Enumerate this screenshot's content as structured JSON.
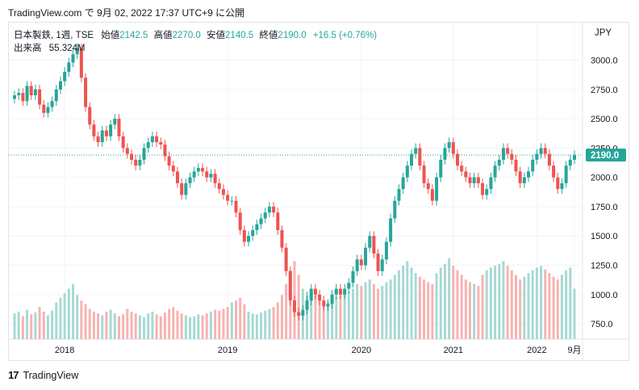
{
  "header": {
    "text": "TradingView.com で 9月 02, 2022 17:37 UTC+9 に公開"
  },
  "legend": {
    "symbol": "日本製鉄, 1週, TSE",
    "open_label": "始値",
    "open_value": "2142.5",
    "high_label": "高値",
    "high_value": "2270.0",
    "low_label": "安値",
    "low_value": "2140.5",
    "close_label": "終値",
    "close_value": "2190.0",
    "change": "+16.5 (+0.76%)",
    "volume_label": "出来高",
    "volume_value": "55.324M"
  },
  "currency": "JPY",
  "footer": {
    "brand": "TradingView",
    "logo": "tv-logo-icon"
  },
  "colors": {
    "up": "#26a69a",
    "down": "#ef5350",
    "vol_up": "#a7d9d4",
    "vol_down": "#f7b3b1",
    "last_price_bg": "#26a69a"
  },
  "chart_data": {
    "type": "candlestick",
    "title": "日本製鉄, 1週, TSE",
    "ylabel": "",
    "xlabel": "",
    "ylim": [
      620,
      3320
    ],
    "y_ticks": [
      "750.0",
      "1000.0",
      "1250.0",
      "1500.0",
      "1750.0",
      "2000.0",
      "2250.0",
      "2500.0",
      "2750.0",
      "3000.0"
    ],
    "x_ticks": [
      "2018",
      "2019",
      "2020",
      "2021",
      "2022",
      "9月"
    ],
    "last_price": "2190.0",
    "last_price_value": 2190,
    "series_close": [
      2700,
      2720,
      2650,
      2780,
      2700,
      2750,
      2620,
      2550,
      2600,
      2650,
      2750,
      2820,
      2900,
      2980,
      3050,
      3100,
      2850,
      2600,
      2450,
      2350,
      2300,
      2400,
      2350,
      2450,
      2500,
      2350,
      2250,
      2200,
      2150,
      2100,
      2150,
      2250,
      2300,
      2350,
      2300,
      2280,
      2180,
      2100,
      2050,
      1950,
      1850,
      1950,
      2000,
      2050,
      2080,
      2050,
      2000,
      2030,
      1950,
      1900,
      1850,
      1800,
      1800,
      1700,
      1550,
      1450,
      1500,
      1550,
      1600,
      1650,
      1700,
      1750,
      1700,
      1550,
      1400,
      1200,
      950,
      850,
      820,
      870,
      950,
      1050,
      1000,
      950,
      900,
      920,
      1000,
      1050,
      1000,
      1050,
      1100,
      1200,
      1300,
      1250,
      1400,
      1500,
      1350,
      1200,
      1300,
      1450,
      1650,
      1800,
      1900,
      2000,
      2100,
      2200,
      2250,
      2100,
      1950,
      1900,
      1800,
      2000,
      2150,
      2250,
      2300,
      2200,
      2100,
      2050,
      2000,
      1950,
      2000,
      1950,
      1850,
      1900,
      2000,
      2100,
      2150,
      2250,
      2200,
      2150,
      2050,
      1950,
      2000,
      2050,
      2150,
      2200,
      2250,
      2200,
      2100,
      2000,
      1900,
      1950,
      2100,
      2150,
      2190
    ],
    "series_volume": [
      28,
      30,
      25,
      32,
      27,
      29,
      35,
      30,
      26,
      31,
      40,
      45,
      50,
      55,
      60,
      48,
      42,
      38,
      33,
      30,
      28,
      26,
      30,
      32,
      28,
      25,
      27,
      33,
      30,
      28,
      26,
      24,
      28,
      30,
      27,
      25,
      29,
      33,
      35,
      31,
      28,
      26,
      24,
      25,
      27,
      26,
      28,
      30,
      32,
      31,
      33,
      35,
      40,
      42,
      45,
      38,
      30,
      28,
      27,
      29,
      31,
      33,
      35,
      40,
      48,
      60,
      75,
      85,
      70,
      55,
      52,
      50,
      48,
      45,
      42,
      40,
      44,
      46,
      48,
      50,
      52,
      55,
      60,
      58,
      62,
      65,
      60,
      55,
      58,
      62,
      65,
      70,
      75,
      80,
      85,
      78,
      72,
      68,
      65,
      62,
      60,
      72,
      78,
      82,
      88,
      80,
      75,
      70,
      65,
      62,
      60,
      58,
      70,
      75,
      78,
      80,
      82,
      85,
      80,
      75,
      70,
      65,
      68,
      72,
      75,
      78,
      80,
      76,
      72,
      68,
      65,
      70,
      75,
      78,
      55
    ]
  }
}
